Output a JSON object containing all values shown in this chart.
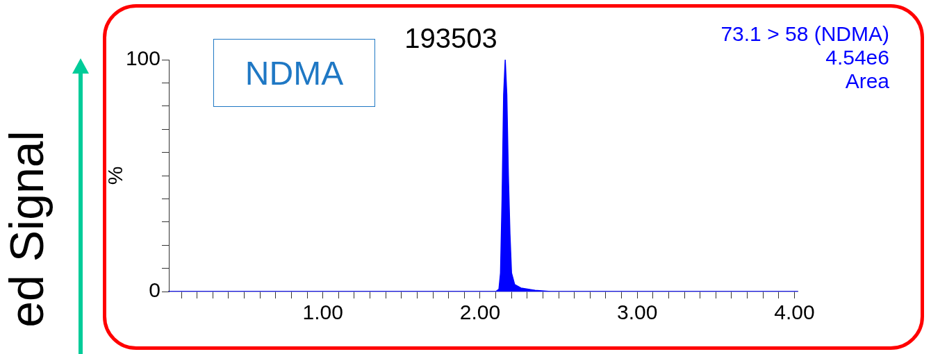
{
  "chart_data": {
    "type": "area",
    "title": "193503",
    "ylabel": "%",
    "annotations": [
      "NDMA",
      "73.1 > 58 (NDMA)",
      "4.54e6",
      "Area",
      "ed Signal"
    ],
    "series": [
      {
        "color": "#0000ff",
        "x": [
          0.02,
          2.1,
          2.12,
          2.13,
          2.14,
          2.15,
          2.16,
          2.17,
          2.18,
          2.19,
          2.2,
          2.22,
          2.26,
          2.35,
          2.45,
          4.02
        ],
        "values": [
          0,
          0,
          1,
          8,
          40,
          85,
          100,
          85,
          50,
          25,
          8,
          3,
          1.5,
          0.5,
          0,
          0
        ]
      }
    ],
    "xlim": [
      0.02,
      4.02
    ],
    "xticks": [
      {
        "value": 0.1,
        "label": null
      },
      {
        "value": 0.2,
        "label": null
      },
      {
        "value": 0.3,
        "label": null
      },
      {
        "value": 0.4,
        "label": null
      },
      {
        "value": 0.5,
        "label": null
      },
      {
        "value": 0.6,
        "label": null
      },
      {
        "value": 0.7,
        "label": null
      },
      {
        "value": 0.8,
        "label": null
      },
      {
        "value": 0.9,
        "label": null
      },
      {
        "value": 1,
        "label": "1.00"
      },
      {
        "value": 1.1,
        "label": null
      },
      {
        "value": 1.2,
        "label": null
      },
      {
        "value": 1.3,
        "label": null
      },
      {
        "value": 1.4,
        "label": null
      },
      {
        "value": 1.5,
        "label": null
      },
      {
        "value": 1.6,
        "label": null
      },
      {
        "value": 1.7,
        "label": null
      },
      {
        "value": 1.8,
        "label": null
      },
      {
        "value": 1.9,
        "label": null
      },
      {
        "value": 2,
        "label": "2.00"
      },
      {
        "value": 2.1,
        "label": null
      },
      {
        "value": 2.2,
        "label": null
      },
      {
        "value": 2.3,
        "label": null
      },
      {
        "value": 2.4,
        "label": null
      },
      {
        "value": 2.5,
        "label": null
      },
      {
        "value": 2.6,
        "label": null
      },
      {
        "value": 2.7,
        "label": null
      },
      {
        "value": 2.8,
        "label": null
      },
      {
        "value": 2.9,
        "label": null
      },
      {
        "value": 3,
        "label": "3.00"
      },
      {
        "value": 3.1,
        "label": null
      },
      {
        "value": 3.2,
        "label": null
      },
      {
        "value": 3.3,
        "label": null
      },
      {
        "value": 3.4,
        "label": null
      },
      {
        "value": 3.5,
        "label": null
      },
      {
        "value": 3.6,
        "label": null
      },
      {
        "value": 3.7,
        "label": null
      },
      {
        "value": 3.8,
        "label": null
      },
      {
        "value": 3.9,
        "label": null
      },
      {
        "value": 4,
        "label": "4.00"
      }
    ],
    "ylim": [
      0,
      100
    ],
    "yticks": [
      0,
      {
        "value": 10,
        "label": null
      },
      {
        "value": 20,
        "label": null
      },
      {
        "value": 30,
        "label": null
      },
      {
        "value": 40,
        "label": null
      },
      {
        "value": 50,
        "label": null
      },
      {
        "value": 60,
        "label": null
      },
      {
        "value": 70,
        "label": null
      },
      {
        "value": 80,
        "label": null
      },
      {
        "value": 90,
        "label": null
      },
      100
    ],
    "grid": false,
    "legend": false,
    "marker": "none"
  }
}
